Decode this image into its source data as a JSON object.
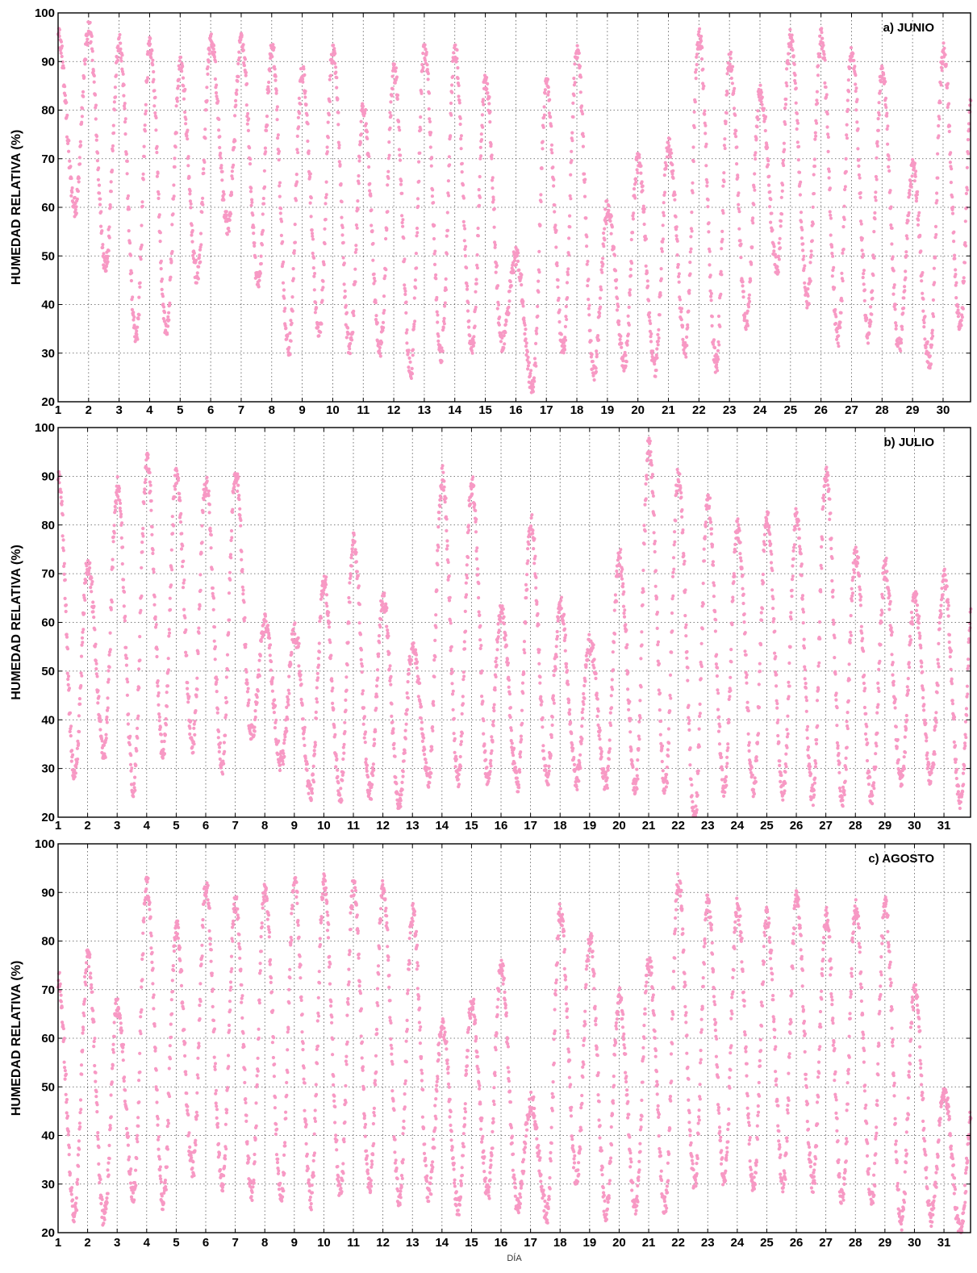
{
  "chart_data": [
    {
      "type": "scatter",
      "title": "a) JUNIO",
      "ylabel": "HUMEDAD RELATIVA (%)",
      "xlabel": "",
      "xlim": [
        1,
        30.9
      ],
      "ylim": [
        20,
        100
      ],
      "yticks": [
        20,
        30,
        40,
        50,
        60,
        70,
        80,
        90,
        100
      ],
      "xticks": [
        1,
        2,
        3,
        4,
        5,
        6,
        7,
        8,
        9,
        10,
        11,
        12,
        13,
        14,
        15,
        16,
        17,
        18,
        19,
        20,
        21,
        22,
        23,
        24,
        25,
        26,
        27,
        28,
        29,
        30
      ],
      "grid": true,
      "marker_color": "#f799c4",
      "series": [
        {
          "daily_max": [
            95,
            97,
            93,
            93,
            89,
            94,
            94,
            93,
            88,
            92,
            80,
            88,
            92,
            92,
            86,
            50,
            85,
            92,
            60,
            70,
            73,
            95,
            90,
            84,
            95,
            95,
            92,
            88,
            68,
            92
          ],
          "daily_min": [
            60,
            48,
            34,
            35,
            46,
            56,
            45,
            31,
            34,
            31,
            31,
            27,
            30,
            31,
            32,
            23,
            31,
            26,
            28,
            27,
            31,
            28,
            36,
            48,
            41,
            33,
            34,
            31,
            28,
            36
          ]
        }
      ]
    },
    {
      "type": "scatter",
      "title": "b) JULIO",
      "ylabel": "HUMEDAD RELATIVA (%)",
      "xlabel": "",
      "xlim": [
        1,
        31.9
      ],
      "ylim": [
        20,
        100
      ],
      "yticks": [
        20,
        30,
        40,
        50,
        60,
        70,
        80,
        90,
        100
      ],
      "xticks": [
        1,
        2,
        3,
        4,
        5,
        6,
        7,
        8,
        9,
        10,
        11,
        12,
        13,
        14,
        15,
        16,
        17,
        18,
        19,
        20,
        21,
        22,
        23,
        24,
        25,
        26,
        27,
        28,
        29,
        30,
        31
      ],
      "grid": true,
      "marker_color": "#f799c4",
      "series": [
        {
          "daily_max": [
            90,
            72,
            88,
            93,
            90,
            89,
            91,
            60,
            58,
            68,
            77,
            65,
            55,
            90,
            88,
            62,
            80,
            63,
            56,
            73,
            96,
            90,
            85,
            79,
            81,
            82,
            91,
            74,
            71,
            65,
            69
          ],
          "daily_min": [
            28,
            33,
            26,
            33,
            35,
            31,
            37,
            31,
            25,
            25,
            25,
            23,
            28,
            28,
            28,
            27,
            28,
            28,
            27,
            26,
            26,
            20,
            26,
            26,
            25,
            24,
            24,
            24,
            28,
            28,
            23
          ]
        }
      ]
    },
    {
      "type": "scatter",
      "title": "c) AGOSTO",
      "ylabel": "HUMEDAD RELATIVA (%)",
      "xlabel": "DÍA",
      "xlim": [
        1,
        31.9
      ],
      "ylim": [
        20,
        100
      ],
      "yticks": [
        20,
        30,
        40,
        50,
        60,
        70,
        80,
        90,
        100
      ],
      "xticks": [
        1,
        2,
        3,
        4,
        5,
        6,
        7,
        8,
        9,
        10,
        11,
        12,
        13,
        14,
        15,
        16,
        17,
        18,
        19,
        20,
        21,
        22,
        23,
        24,
        25,
        26,
        27,
        28,
        29,
        30,
        31
      ],
      "grid": true,
      "marker_color": "#f799c4",
      "series": [
        {
          "daily_max": [
            72,
            77,
            67,
            92,
            83,
            91,
            88,
            91,
            92,
            92,
            91,
            91,
            86,
            63,
            67,
            75,
            47,
            86,
            80,
            68,
            76,
            92,
            88,
            87,
            85,
            89,
            85,
            87,
            88,
            70,
            49
          ],
          "daily_min": [
            24,
            23,
            28,
            26,
            33,
            30,
            28,
            27,
            27,
            28,
            29,
            27,
            28,
            25,
            28,
            25,
            24,
            31,
            24,
            25,
            25,
            30,
            31,
            30,
            30,
            30,
            27,
            26,
            22,
            23,
            20
          ]
        }
      ]
    }
  ]
}
